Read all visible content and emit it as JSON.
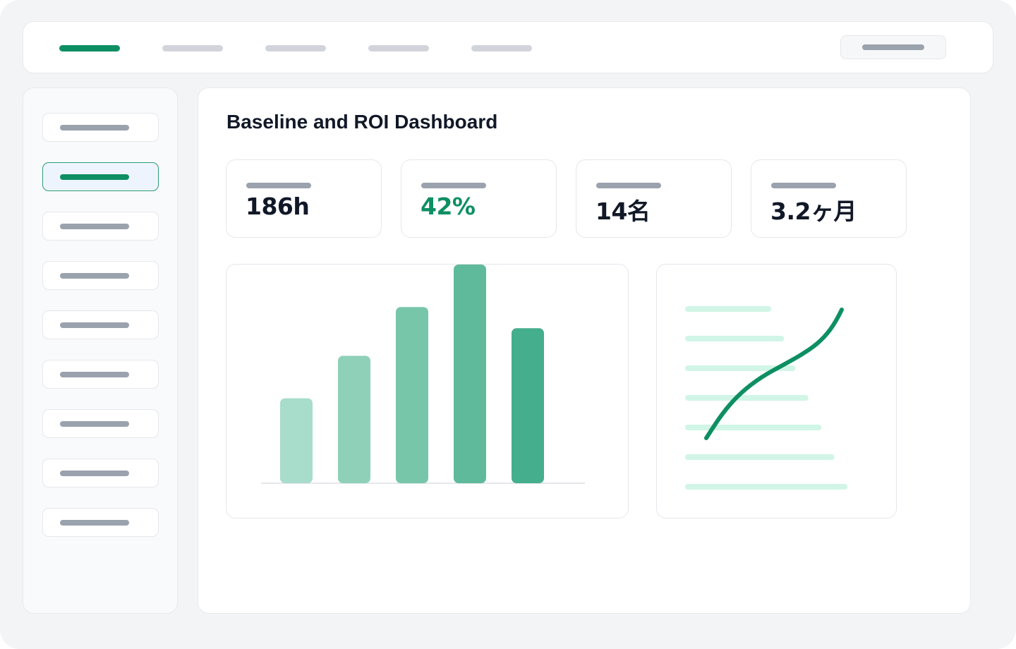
{
  "app": {
    "accent_color": "#0e8f63",
    "nav_tabs": [
      {
        "label": "",
        "active": true
      },
      {
        "label": "",
        "active": false
      },
      {
        "label": "",
        "active": false
      },
      {
        "label": "",
        "active": false
      },
      {
        "label": "",
        "active": false
      }
    ],
    "topbar_action_label": ""
  },
  "sidebar": {
    "items": [
      {
        "label": "",
        "active": false
      },
      {
        "label": "",
        "active": true
      },
      {
        "label": "",
        "active": false
      },
      {
        "label": "",
        "active": false
      },
      {
        "label": "",
        "active": false
      },
      {
        "label": "",
        "active": false
      },
      {
        "label": "",
        "active": false
      },
      {
        "label": "",
        "active": false
      },
      {
        "label": "",
        "active": false
      }
    ]
  },
  "main": {
    "title": "Baseline and ROI Dashboard",
    "kpis": [
      {
        "label": "",
        "value": "186h",
        "color": "#111827"
      },
      {
        "label": "",
        "value": "42%",
        "color": "#0e8f63"
      },
      {
        "label": "",
        "value": "14名",
        "color": "#111827"
      },
      {
        "label": "",
        "value": "3.2ヶ月",
        "color": "#111827"
      }
    ]
  },
  "chart_data": [
    {
      "type": "bar",
      "title": "",
      "xlabel": "",
      "ylabel": "",
      "categories": [
        "",
        "",
        "",
        "",
        ""
      ],
      "values": [
        40,
        60,
        83,
        103,
        73
      ],
      "ylim": [
        0,
        103
      ],
      "grid": false,
      "legend": "none",
      "colors": [
        "#a8dccb",
        "#8ed1b8",
        "#77c6a9",
        "#5fba9b",
        "#45ae8c"
      ]
    },
    {
      "type": "line",
      "title": "",
      "xlabel": "",
      "ylabel": "",
      "series": [
        {
          "values": [
            0,
            0.38,
            0.6,
            0.78,
            1.0
          ]
        }
      ],
      "background_bars": [
        0.53,
        0.61,
        0.68,
        0.76,
        0.84,
        0.92,
        1.0
      ],
      "line_color": "#0e8f63",
      "bar_color": "#d1f5e6",
      "grid": false,
      "legend": "none"
    }
  ]
}
